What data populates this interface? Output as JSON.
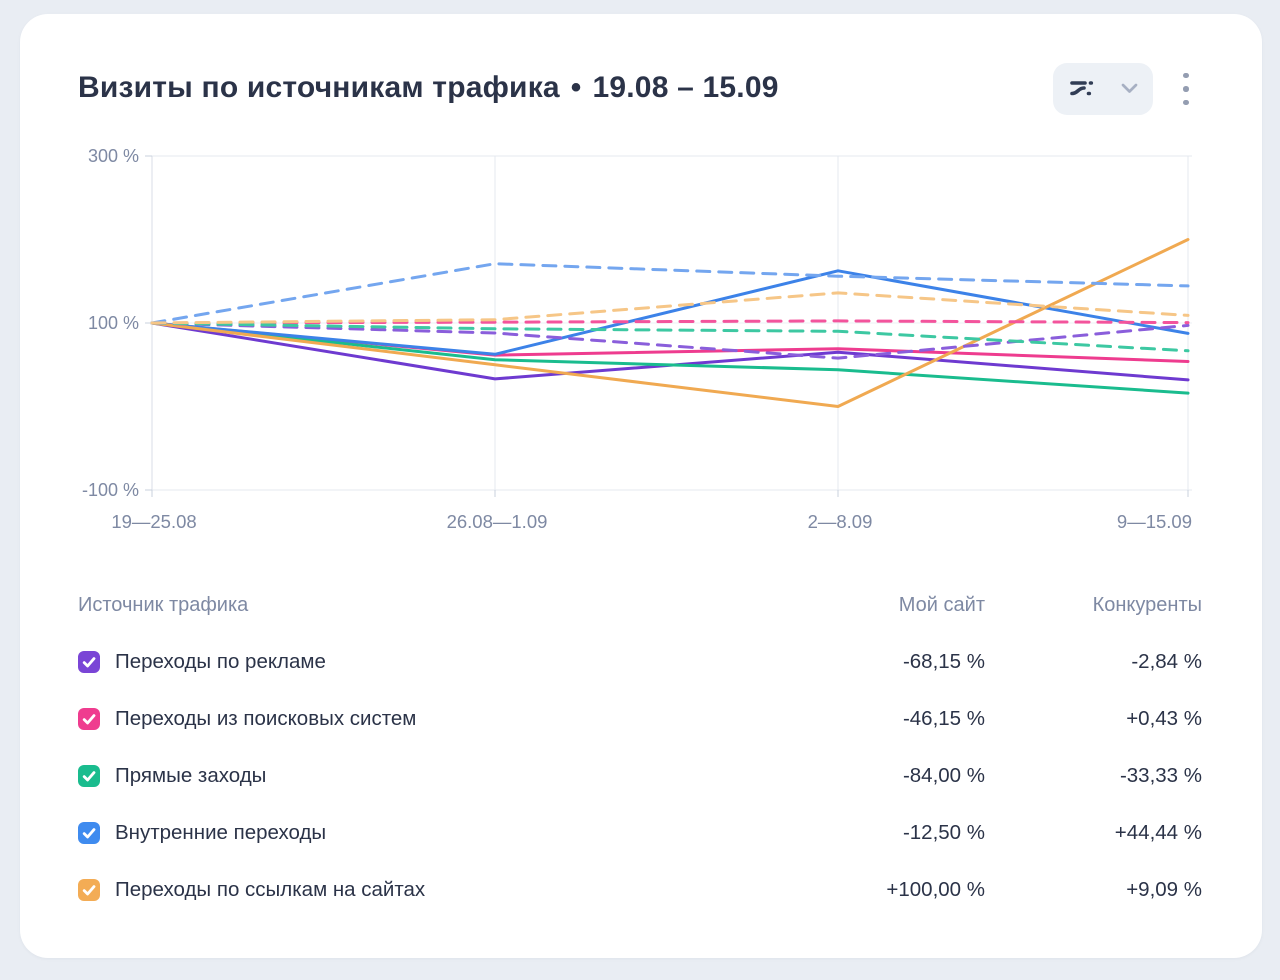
{
  "header": {
    "title": "Визиты по источникам трафика",
    "separator": "•",
    "period": "19.08 – 15.09",
    "controls": {
      "chart_type_icon": "chart-style-selector",
      "chevron_icon": "chevron-down",
      "menu_icon": "kebab-vertical"
    }
  },
  "colors": {
    "background": "#E9EDF3",
    "card": "#FFFFFF",
    "title_text": "#2B3348",
    "muted_text": "#7E89A3",
    "grid": "#E4E8EF",
    "axis": "#D9DEE7",
    "tick": "#C9D0DC"
  },
  "chart_data": {
    "type": "line",
    "title": "Визиты по источникам трафика, динамика по неделям (в % к первой неделе)",
    "categories": [
      "19—25.08",
      "26.08—1.09",
      "2—8.09",
      "9—15.09"
    ],
    "unit": "%",
    "ylim": [
      -100,
      300
    ],
    "y_ticks": [
      {
        "value": 300,
        "label": "300 %"
      },
      {
        "value": 100,
        "label": "100 %"
      },
      {
        "value": -100,
        "label": "-100 %"
      }
    ],
    "grid": "vertical-weeks + top/mid/bottom horizontals",
    "legend_position": "bottom-table",
    "series": [
      {
        "name": "Переходы по рекламе — Мой сайт",
        "group": "Мой сайт",
        "style": "solid",
        "color": "#6E3AD0",
        "values": [
          100,
          33,
          65,
          31.85
        ]
      },
      {
        "name": "Переходы из поисковых систем — Мой сайт",
        "group": "Мой сайт",
        "style": "solid",
        "color": "#EE3C8F",
        "values": [
          100,
          61.5,
          69.2,
          53.85
        ]
      },
      {
        "name": "Прямые заходы — Мой сайт",
        "group": "Мой сайт",
        "style": "solid",
        "color": "#1ABC8E",
        "values": [
          100,
          56,
          44,
          16
        ]
      },
      {
        "name": "Внутренние переходы — Мой сайт",
        "group": "Мой сайт",
        "style": "solid",
        "color": "#3C82E8",
        "values": [
          100,
          62.5,
          162.5,
          87.5
        ]
      },
      {
        "name": "Переходы по ссылкам на сайтах — Мой сайт",
        "group": "Мой сайт",
        "style": "solid",
        "color": "#F0A951",
        "values": [
          100,
          50,
          0,
          200
        ]
      },
      {
        "name": "Переходы по рекламе — Конкуренты",
        "group": "Конкуренты",
        "style": "dashed",
        "color": "#8A5EDB",
        "values": [
          100,
          88,
          58,
          97.16
        ]
      },
      {
        "name": "Переходы из поисковых систем — Конкуренты",
        "group": "Конкуренты",
        "style": "dashed",
        "color": "#F3549C",
        "values": [
          100,
          101,
          102.5,
          100.43
        ]
      },
      {
        "name": "Прямые заходы — Конкуренты",
        "group": "Конкуренты",
        "style": "dashed",
        "color": "#3DC8A2",
        "values": [
          100,
          93,
          90,
          66.67
        ]
      },
      {
        "name": "Внутренние переходы — Конкуренты",
        "group": "Конкуренты",
        "style": "dashed",
        "color": "#74A6EF",
        "values": [
          100,
          171,
          156,
          144.44
        ]
      },
      {
        "name": "Переходы по ссылкам на сайтах — Конкуренты",
        "group": "Конкуренты",
        "style": "dashed",
        "color": "#F6C687",
        "values": [
          100,
          104,
          136,
          109.09
        ]
      }
    ]
  },
  "legend_table": {
    "headers": {
      "source": "Источник трафика",
      "my_site": "Мой сайт",
      "competitors": "Конкуренты"
    },
    "rows": [
      {
        "label": "Переходы по рекламе",
        "color": "#7A45D6",
        "checked": true,
        "my_site": "-68,15 %",
        "competitors": "-2,84 %"
      },
      {
        "label": "Переходы из поисковых систем",
        "color": "#EF3C8F",
        "checked": true,
        "my_site": "-46,15 %",
        "competitors": "+0,43 %"
      },
      {
        "label": "Прямые заходы",
        "color": "#1ABC8E",
        "checked": true,
        "my_site": "-84,00 %",
        "competitors": "-33,33 %"
      },
      {
        "label": "Внутренние переходы",
        "color": "#3F8BEF",
        "checked": true,
        "my_site": "-12,50 %",
        "competitors": "+44,44 %"
      },
      {
        "label": "Переходы по ссылкам на сайтах",
        "color": "#F3AC55",
        "checked": true,
        "my_site": "+100,00 %",
        "competitors": "+9,09 %"
      }
    ]
  }
}
